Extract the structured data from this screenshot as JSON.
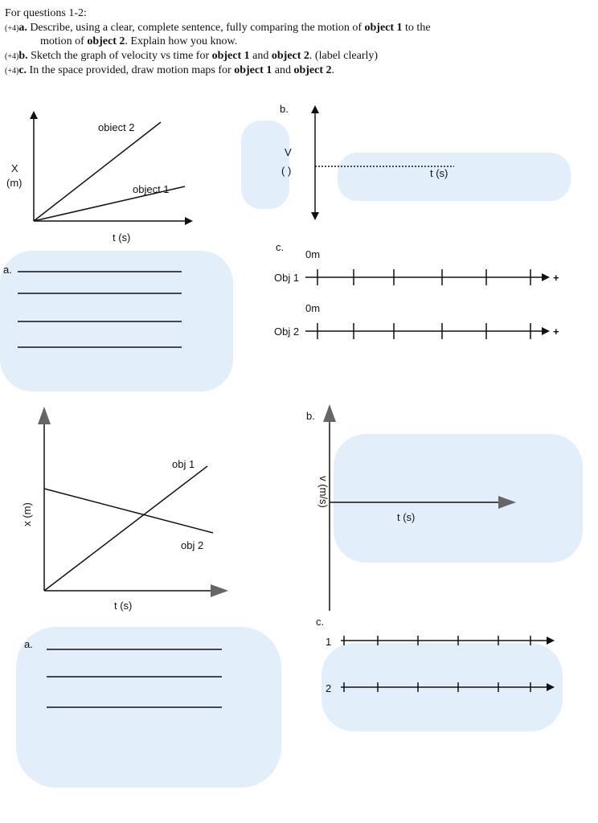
{
  "header": {
    "title": "For questions 1-2:"
  },
  "questions": [
    {
      "points": "(+4)",
      "label": "a.",
      "lines": [
        [
          {
            "text": "Describe, using a clear, complete sentence, fully comparing the motion of "
          },
          {
            "text": "object 1",
            "bold": true
          },
          {
            "text": " to the"
          }
        ],
        [
          {
            "text": "motion of "
          },
          {
            "text": "object 2",
            "bold": true
          },
          {
            "text": ". Explain how you know."
          }
        ]
      ]
    },
    {
      "points": "(+4)",
      "label": "b.",
      "lines": [
        [
          {
            "text": "Sketch the graph of velocity vs time for "
          },
          {
            "text": "object 1",
            "bold": true
          },
          {
            "text": " and "
          },
          {
            "text": "object 2",
            "bold": true
          },
          {
            "text": ". (label clearly)"
          }
        ]
      ]
    },
    {
      "points": "(+4)",
      "label": "c.",
      "lines": [
        [
          {
            "text": "In the space provided, draw motion maps for "
          },
          {
            "text": "object 1",
            "bold": true
          },
          {
            "text": " and "
          },
          {
            "text": "object 2",
            "bold": true
          },
          {
            "text": "."
          }
        ]
      ]
    }
  ],
  "problem1": {
    "graph_a": {
      "y_label": "X",
      "y_unit": "(m)",
      "x_label": "t (s)",
      "line_labels": [
        "obiect 2",
        "object 1"
      ]
    },
    "answer_label": "a.",
    "graph_b": {
      "label": "b.",
      "y_label": "V",
      "y_unit": "( )",
      "x_label": "t (s)"
    },
    "motion_map": {
      "label": "c.",
      "rows": [
        {
          "origin": "0m",
          "name": "Obj 1",
          "direction": "+"
        },
        {
          "origin": "0m",
          "name": "Obj 2",
          "direction": "+"
        }
      ]
    }
  },
  "problem2": {
    "graph_a": {
      "y_label": "x (m)",
      "x_label": "t (s)",
      "line_labels": [
        "obj 1",
        "obj 2"
      ]
    },
    "answer_label": "a.",
    "graph_b": {
      "label": "b.",
      "y_label": "v (m/s)",
      "x_label": "t (s)"
    },
    "motion_map": {
      "label": "c.",
      "rows": [
        {
          "name": "1"
        },
        {
          "name": "2"
        }
      ]
    }
  }
}
